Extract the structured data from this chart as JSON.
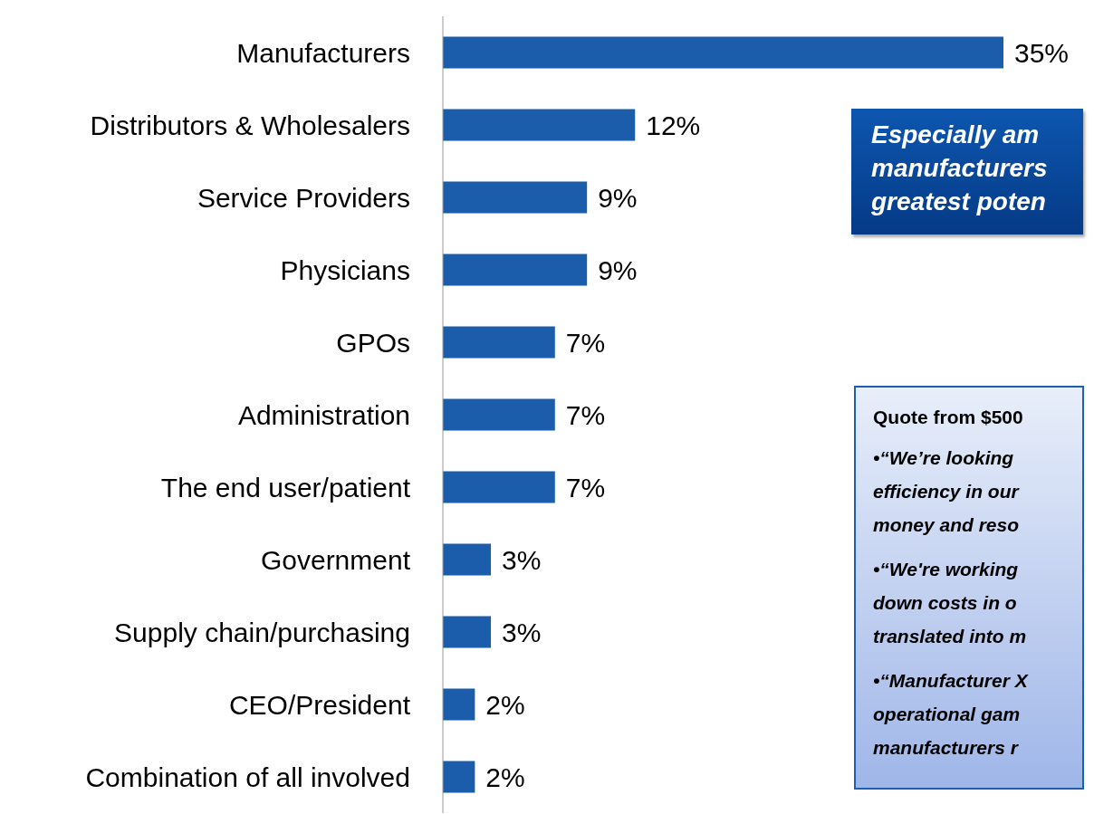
{
  "chart_data": {
    "type": "bar",
    "orientation": "horizontal",
    "categories": [
      "Manufacturers",
      "Distributors & Wholesalers",
      "Service Providers",
      "Physicians",
      "GPOs",
      "Administration",
      "The end user/patient",
      "Government",
      "Supply chain/purchasing",
      "CEO/President",
      "Combination of all involved"
    ],
    "values": [
      35,
      12,
      9,
      9,
      7,
      7,
      7,
      3,
      3,
      2,
      2
    ],
    "value_labels": [
      "35%",
      "12%",
      "9%",
      "9%",
      "7%",
      "7%",
      "7%",
      "3%",
      "3%",
      "2%",
      "2%"
    ],
    "color": "#1b5cab",
    "annotations": [
      "Especially am\nmanufacturers\ngreatest poten",
      "Quote from $500",
      "•“We’re looking\nefficiency in our\nmoney and reso",
      "•“We're working\ndown costs in o\ntranslated into m",
      "•“Manufacturer X\noperational gam\nmanufacturers r"
    ]
  }
}
